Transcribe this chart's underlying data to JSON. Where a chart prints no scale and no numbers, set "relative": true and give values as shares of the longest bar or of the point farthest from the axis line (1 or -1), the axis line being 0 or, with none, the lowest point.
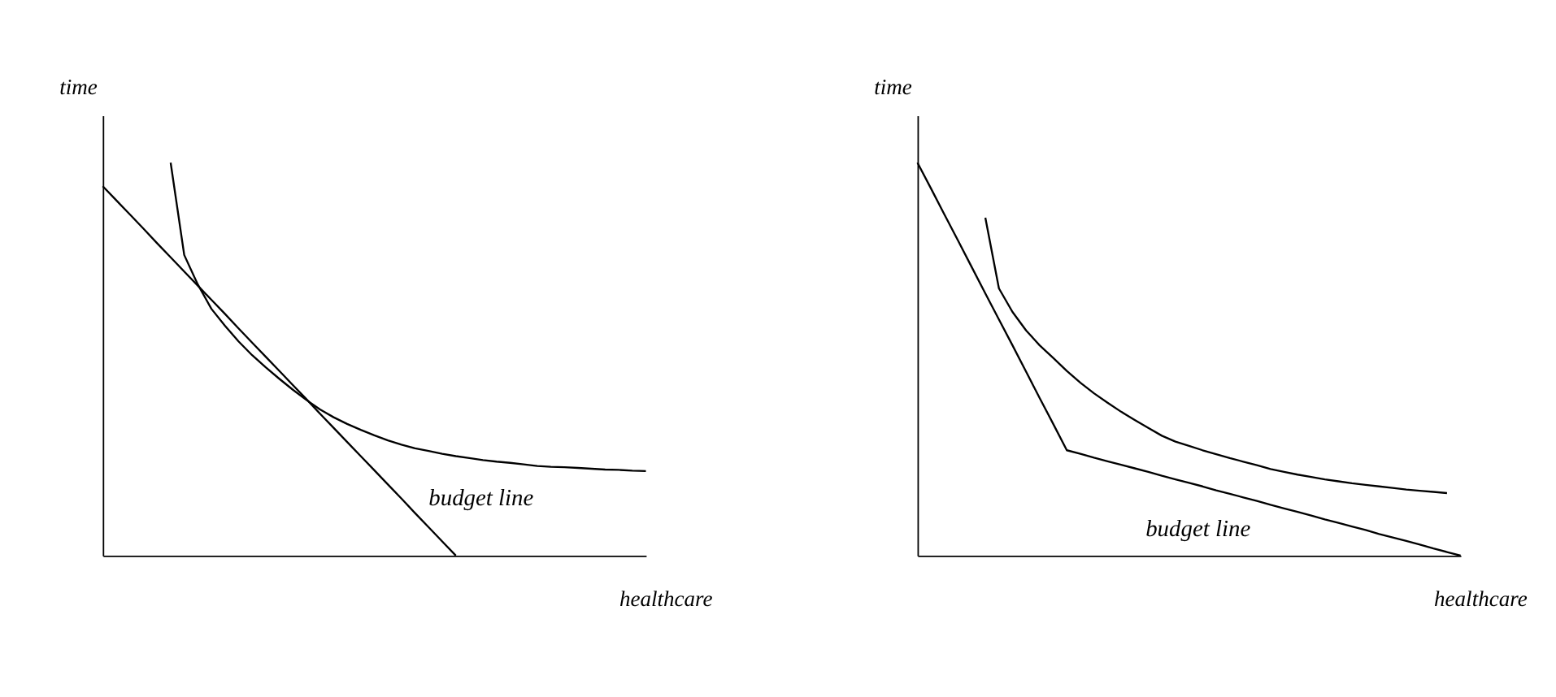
{
  "chart_data": [
    {
      "type": "line",
      "relative": true,
      "xlabel": "healthcare",
      "ylabel": "time",
      "grid": false,
      "categories": [
        null,
        null,
        null,
        null,
        null,
        null,
        null,
        null,
        null,
        null,
        null,
        null,
        null,
        null,
        null,
        null,
        null,
        null,
        null,
        null,
        null,
        null,
        null,
        null,
        null,
        null,
        null,
        null,
        null,
        null,
        null,
        null,
        null,
        null,
        null,
        null,
        null,
        null,
        null,
        null,
        null
      ],
      "series": [
        {
          "color": "#000000",
          "values": [
            0.94,
            0.904,
            0.868,
            0.832,
            0.795,
            0.759,
            0.723,
            0.687,
            0.651,
            0.615,
            0.578,
            0.542,
            0.506,
            0.47,
            0.434,
            0.398,
            0.361,
            0.325,
            0.289,
            0.253,
            0.217,
            0.181,
            0.145,
            0.108,
            0.072,
            0.036,
            0,
            null,
            null,
            null,
            null,
            null,
            null,
            null,
            null,
            null,
            null,
            null,
            null,
            null,
            null
          ]
        },
        {
          "color": "#000000",
          "values": [
            null,
            null,
            null,
            null,
            null,
            1.0,
            0.765,
            0.69,
            0.628,
            0.585,
            0.545,
            0.51,
            0.479,
            0.45,
            0.422,
            0.396,
            0.372,
            0.352,
            0.335,
            0.32,
            0.306,
            0.293,
            0.282,
            0.273,
            0.266,
            0.259,
            0.253,
            0.248,
            0.243,
            0.239,
            0.236,
            0.232,
            0.228,
            0.226,
            0.225,
            0.223,
            0.221,
            0.219,
            0.218,
            0.216,
            0.215
          ]
        }
      ],
      "annotations": [
        "budget line"
      ]
    },
    {
      "type": "line",
      "relative": true,
      "xlabel": "healthcare",
      "ylabel": "time",
      "grid": false,
      "categories": [
        null,
        null,
        null,
        null,
        null,
        null,
        null,
        null,
        null,
        null,
        null,
        null,
        null,
        null,
        null,
        null,
        null,
        null,
        null,
        null,
        null,
        null,
        null,
        null,
        null,
        null,
        null,
        null,
        null,
        null,
        null,
        null,
        null,
        null,
        null,
        null,
        null,
        null,
        null,
        null,
        null
      ],
      "series": [
        {
          "color": "#000000",
          "values": [
            1.0,
            0.934,
            0.867,
            0.801,
            0.734,
            0.667,
            0.601,
            0.535,
            0.468,
            0.401,
            0.335,
            0.268,
            0.259,
            0.249,
            0.24,
            0.231,
            0.222,
            0.213,
            0.203,
            0.194,
            0.185,
            0.176,
            0.166,
            0.157,
            0.148,
            0.139,
            0.129,
            0.12,
            0.111,
            0.102,
            0.092,
            0.083,
            0.074,
            0.065,
            0.055,
            0.046,
            0.037,
            0.028,
            0.018,
            0.009,
            0
          ]
        },
        {
          "color": "#000000",
          "values": [
            null,
            null,
            null,
            null,
            null,
            0.86,
            0.68,
            0.62,
            0.573,
            0.535,
            0.503,
            0.47,
            0.44,
            0.413,
            0.389,
            0.366,
            0.345,
            0.325,
            0.305,
            0.29,
            0.279,
            0.268,
            0.258,
            0.248,
            0.239,
            0.23,
            0.22,
            0.213,
            0.206,
            0.2,
            0.194,
            0.189,
            0.184,
            0.18,
            0.176,
            0.172,
            0.168,
            0.165,
            0.162,
            0.159,
            null
          ]
        }
      ],
      "annotations": [
        "budget line"
      ]
    }
  ]
}
